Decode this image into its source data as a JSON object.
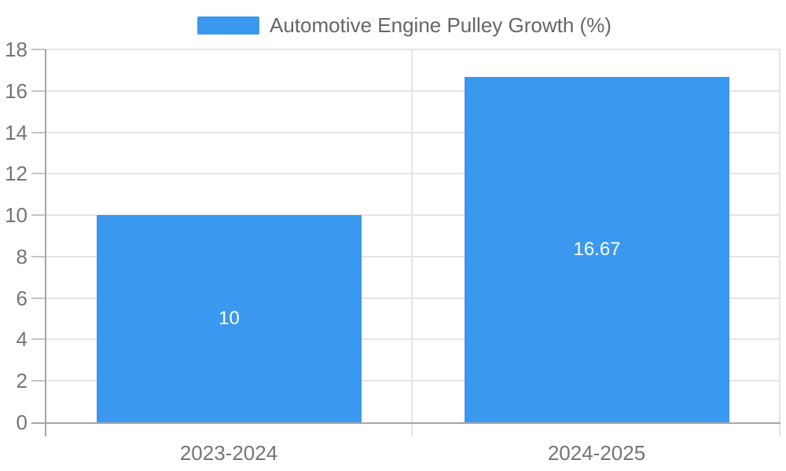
{
  "chart_data": {
    "type": "bar",
    "legend": "Automotive Engine Pulley Growth (%)",
    "categories": [
      "2023-2024",
      "2024-2025"
    ],
    "values": [
      10,
      16.67
    ],
    "value_labels": [
      "10",
      "16.67"
    ],
    "ylim": [
      0,
      18
    ],
    "ytick_step": 2,
    "ytick_labels": [
      "0",
      "2",
      "4",
      "6",
      "8",
      "10",
      "12",
      "14",
      "16",
      "18"
    ],
    "grid": true,
    "legend_position": "top-center",
    "bar_width_fraction": 0.72,
    "colors": {
      "bar": "#3A99EE",
      "grid_line": "#E5E5E5",
      "axis_line": "#A6A6A6",
      "tick_mark": "#C4C4C4",
      "axis_label": "#757575",
      "legend_text": "#666666",
      "value_label": "#FFFFFF",
      "background": "#FFFFFF"
    }
  }
}
